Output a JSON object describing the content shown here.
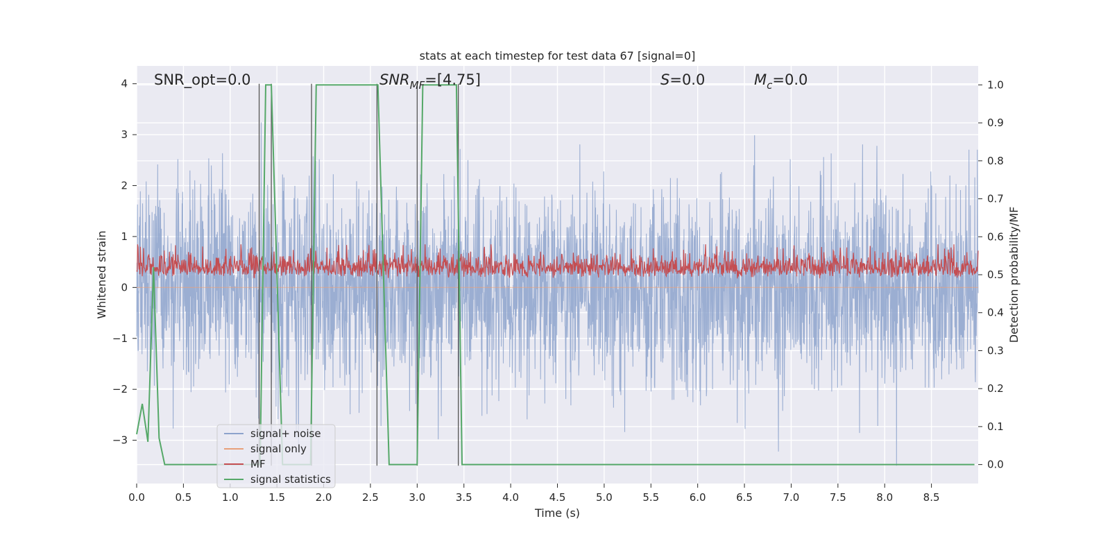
{
  "chart_data": {
    "type": "line",
    "title": "stats at each timestep for test data 67 [signal=0]",
    "xlabel": "Time (s)",
    "ylabel_left": "Whitened strain",
    "ylabel_right": "Detection probability/MF",
    "xlim": [
      0,
      9.0
    ],
    "ylim_left": [
      -3.85,
      4.35
    ],
    "ylim_right": [
      -0.05,
      1.05
    ],
    "x_ticks": [
      0.0,
      0.5,
      1.0,
      1.5,
      2.0,
      2.5,
      3.0,
      3.5,
      4.0,
      4.5,
      5.0,
      5.5,
      6.0,
      6.5,
      7.0,
      7.5,
      8.0,
      8.5
    ],
    "y_ticks_left": [
      -3,
      -2,
      -1,
      0,
      1,
      2,
      3,
      4
    ],
    "y_ticks_right": [
      0.0,
      0.1,
      0.2,
      0.3,
      0.4,
      0.5,
      0.6,
      0.7,
      0.8,
      0.9,
      1.0
    ],
    "grid": true,
    "legend_position": "lower-left",
    "annotations": {
      "snr_opt": "SNR_opt=0.0",
      "snr_mf_main": "SNR",
      "snr_mf_sub": "MF",
      "snr_mf_value": "=[4.75]",
      "s_label": "S",
      "s_value": "=0.0",
      "mc_main": "M",
      "mc_sub": "c",
      "mc_value": "=0.0"
    },
    "series": [
      {
        "name": "signal+ noise",
        "color": "#8da3cc",
        "axis": "left",
        "kind": "noise",
        "envelope_typical": [
          -1.7,
          1.7
        ],
        "extremes": [
          -3.5,
          3.4
        ]
      },
      {
        "name": "signal only",
        "color": "#e8a07a",
        "axis": "left",
        "kind": "flat",
        "value": 0.0
      },
      {
        "name": "MF",
        "color": "#c44e52",
        "axis": "right",
        "kind": "noise",
        "baseline": 0.5,
        "range": [
          0.48,
          0.58
        ]
      },
      {
        "name": "signal statistics",
        "color": "#55a868",
        "axis": "right",
        "x": [
          0.0,
          0.06,
          0.12,
          0.18,
          0.24,
          0.3,
          1.32,
          1.38,
          1.44,
          1.56,
          1.86,
          1.92,
          2.58,
          2.7,
          3.0,
          3.06,
          3.42,
          3.48,
          8.96
        ],
        "y": [
          0.08,
          0.16,
          0.06,
          0.52,
          0.07,
          0.0,
          0.0,
          1.0,
          1.0,
          0.0,
          0.0,
          1.0,
          1.0,
          0.0,
          0.0,
          1.0,
          1.0,
          0.0,
          0.0
        ]
      }
    ],
    "vertical_markers": {
      "color": "#555555",
      "lines": [
        {
          "x": 1.31,
          "y_range": [
            -3.5,
            4.0
          ]
        },
        {
          "x": 1.44,
          "y_range": [
            -3.5,
            4.0
          ]
        },
        {
          "x": 1.87,
          "y_range": [
            -3.5,
            4.0
          ]
        },
        {
          "x": 2.57,
          "y_range": [
            -3.5,
            4.0
          ]
        },
        {
          "x": 3.0,
          "y_range": [
            -3.5,
            4.0
          ]
        },
        {
          "x": 3.44,
          "y_range": [
            -3.5,
            4.0
          ]
        }
      ]
    }
  }
}
